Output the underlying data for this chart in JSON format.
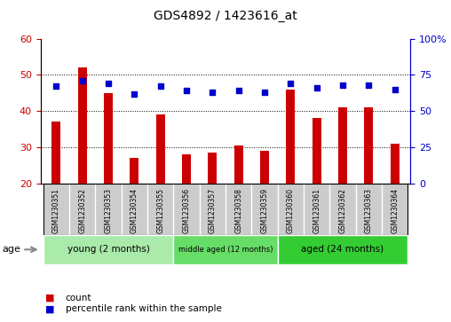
{
  "title": "GDS4892 / 1423616_at",
  "samples": [
    "GSM1230351",
    "GSM1230352",
    "GSM1230353",
    "GSM1230354",
    "GSM1230355",
    "GSM1230356",
    "GSM1230357",
    "GSM1230358",
    "GSM1230359",
    "GSM1230360",
    "GSM1230361",
    "GSM1230362",
    "GSM1230363",
    "GSM1230364"
  ],
  "counts": [
    37,
    52,
    45,
    27,
    39,
    28,
    28.5,
    30.5,
    29,
    46,
    38,
    41,
    41,
    31
  ],
  "percentiles": [
    67,
    71,
    69,
    62,
    67,
    64,
    63,
    64,
    63,
    69,
    66,
    68,
    68,
    65
  ],
  "ylim_left": [
    20,
    60
  ],
  "ylim_right": [
    0,
    100
  ],
  "yticks_left": [
    20,
    30,
    40,
    50,
    60
  ],
  "yticks_right": [
    0,
    25,
    50,
    75,
    100
  ],
  "bar_color": "#CC0000",
  "dot_color": "#0000CC",
  "groups": [
    {
      "label": "young (2 months)",
      "start": 0,
      "end": 5,
      "color": "#AAEAAA"
    },
    {
      "label": "middle aged (12 months)",
      "start": 5,
      "end": 9,
      "color": "#66DD66"
    },
    {
      "label": "aged (24 months)",
      "start": 9,
      "end": 14,
      "color": "#33CC33"
    }
  ],
  "age_label": "age",
  "legend_count": "count",
  "legend_percentile": "percentile rank within the sample",
  "sample_bg": "#CCCCCC",
  "fig_bg": "#FFFFFF"
}
